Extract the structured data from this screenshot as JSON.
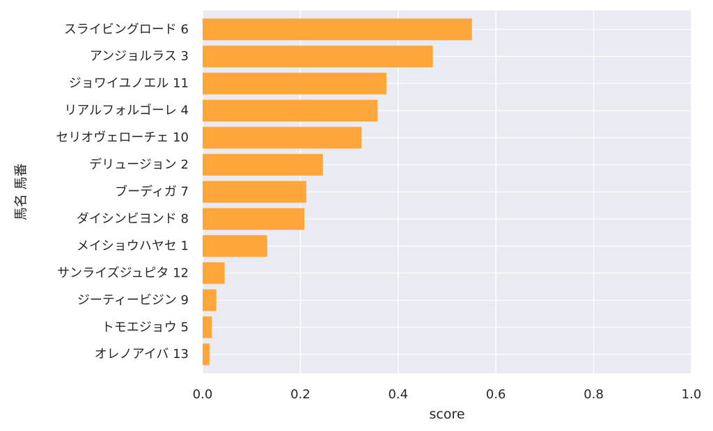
{
  "chart_data": {
    "type": "bar",
    "orientation": "horizontal",
    "title": "",
    "xlabel": "score",
    "ylabel": "馬名 馬番",
    "xlim": [
      0,
      1.0
    ],
    "xticks": [
      "0.0",
      "0.2",
      "0.4",
      "0.6",
      "0.8",
      "1.0"
    ],
    "grid": true,
    "bar_color": "#ff9f2a",
    "background_color": "#eaeaf2",
    "categories": [
      "スライビングロード 6",
      "アンジョルラス 3",
      "ジョワイユノエル 11",
      "リアルフォルゴーレ 4",
      "セリオヴェローチェ 10",
      "デリュージョン 2",
      "ブーディガ 7",
      "ダイシンビヨンド 8",
      "メイショウハヤセ 1",
      "サンライズジュピタ 12",
      "ジーティービジン 9",
      "トモエジョウ 5",
      "オレノアイバ 13"
    ],
    "values": [
      0.551,
      0.471,
      0.376,
      0.358,
      0.325,
      0.246,
      0.212,
      0.208,
      0.132,
      0.045,
      0.028,
      0.019,
      0.014
    ]
  }
}
